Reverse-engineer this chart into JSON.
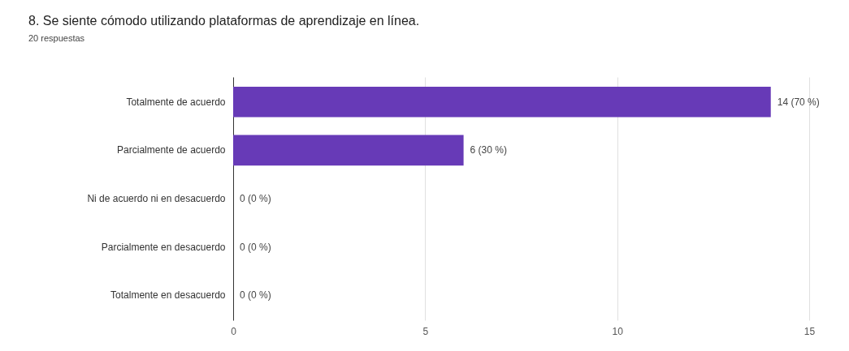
{
  "chart_data": {
    "type": "bar",
    "orientation": "horizontal",
    "title": "8. Se siente cómodo utilizando plataformas de aprendizaje en línea.",
    "subtitle": "20 respuestas",
    "categories": [
      "Totalmente de acuerdo",
      "Parcialmente de acuerdo",
      "Ni de acuerdo ni en desacuerdo",
      "Parcialmente en desacuerdo",
      "Totalmente en desacuerdo"
    ],
    "values": [
      14,
      6,
      0,
      0,
      0
    ],
    "color": "#673ab7",
    "xlim": [
      0,
      15
    ],
    "xticks": [
      0,
      5,
      10,
      15
    ],
    "grid": "x",
    "value_labels": [
      "14 (70 %)",
      "6 (30 %)",
      "0 (0 %)",
      "0 (0 %)",
      "0 (0 %)"
    ]
  }
}
